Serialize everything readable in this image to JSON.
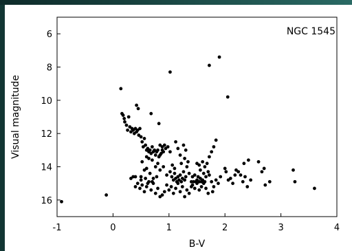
{
  "chart_data": {
    "type": "scatter",
    "title": "",
    "annotation": "NGC 1545",
    "xlabel": "B-V",
    "ylabel": "Visual magnitude",
    "xlim": [
      -1,
      4
    ],
    "ylim": [
      17,
      5
    ],
    "y_inverted": true,
    "x_ticks": [
      -1,
      0,
      1,
      2,
      3,
      4
    ],
    "y_ticks": [
      6,
      8,
      10,
      12,
      14,
      16
    ],
    "grid": false,
    "point_color": "#000000",
    "points": [
      [
        -0.92,
        16.1
      ],
      [
        -0.12,
        15.7
      ],
      [
        0.14,
        9.3
      ],
      [
        0.16,
        10.8
      ],
      [
        0.18,
        10.9
      ],
      [
        0.2,
        11.1
      ],
      [
        0.21,
        11.3
      ],
      [
        0.24,
        11.5
      ],
      [
        0.26,
        11.8
      ],
      [
        0.28,
        11.0
      ],
      [
        0.3,
        11.6
      ],
      [
        0.32,
        11.9
      ],
      [
        0.34,
        11.7
      ],
      [
        0.36,
        11.8
      ],
      [
        0.38,
        12.0
      ],
      [
        0.4,
        11.7
      ],
      [
        0.42,
        11.9
      ],
      [
        0.44,
        11.8
      ],
      [
        0.46,
        12.1
      ],
      [
        0.48,
        11.7
      ],
      [
        0.5,
        12.2
      ],
      [
        0.52,
        12.5
      ],
      [
        0.54,
        12.8
      ],
      [
        0.42,
        10.3
      ],
      [
        0.45,
        10.5
      ],
      [
        0.68,
        10.8
      ],
      [
        0.82,
        11.4
      ],
      [
        0.56,
        12.3
      ],
      [
        0.58,
        12.7
      ],
      [
        0.6,
        13.0
      ],
      [
        0.62,
        12.9
      ],
      [
        0.64,
        13.1
      ],
      [
        0.66,
        13.0
      ],
      [
        0.68,
        13.2
      ],
      [
        0.7,
        12.8
      ],
      [
        0.72,
        13.1
      ],
      [
        0.74,
        13.0
      ],
      [
        0.76,
        13.3
      ],
      [
        0.78,
        13.1
      ],
      [
        0.8,
        13.0
      ],
      [
        0.82,
        13.4
      ],
      [
        0.84,
        12.7
      ],
      [
        0.86,
        13.2
      ],
      [
        0.88,
        12.8
      ],
      [
        0.9,
        13.1
      ],
      [
        0.92,
        12.7
      ],
      [
        0.94,
        12.9
      ],
      [
        0.98,
        12.8
      ],
      [
        0.6,
        13.4
      ],
      [
        0.64,
        13.5
      ],
      [
        0.7,
        13.6
      ],
      [
        0.76,
        14.0
      ],
      [
        0.8,
        13.8
      ],
      [
        0.84,
        13.3
      ],
      [
        0.88,
        13.0
      ],
      [
        0.52,
        13.7
      ],
      [
        0.56,
        14.2
      ],
      [
        0.5,
        14.6
      ],
      [
        0.6,
        14.1
      ],
      [
        0.66,
        14.4
      ],
      [
        0.72,
        14.7
      ],
      [
        0.78,
        14.6
      ],
      [
        0.84,
        14.2
      ],
      [
        0.9,
        14.0
      ],
      [
        0.96,
        14.5
      ],
      [
        1.02,
        14.3
      ],
      [
        1.05,
        14.6
      ],
      [
        1.08,
        14.8
      ],
      [
        1.1,
        14.4
      ],
      [
        1.12,
        14.7
      ],
      [
        1.14,
        14.9
      ],
      [
        1.16,
        14.6
      ],
      [
        1.18,
        14.8
      ],
      [
        1.2,
        14.5
      ],
      [
        1.22,
        14.9
      ],
      [
        1.24,
        14.7
      ],
      [
        1.26,
        14.3
      ],
      [
        1.28,
        14.8
      ],
      [
        1.3,
        14.6
      ],
      [
        1.32,
        14.0
      ],
      [
        1.34,
        13.7
      ],
      [
        1.36,
        14.4
      ],
      [
        1.12,
        12.5
      ],
      [
        1.16,
        12.9
      ],
      [
        1.2,
        13.3
      ],
      [
        1.22,
        13.8
      ],
      [
        1.26,
        12.7
      ],
      [
        1.28,
        13.5
      ],
      [
        1.3,
        13.0
      ],
      [
        1.02,
        13.1
      ],
      [
        1.06,
        13.9
      ],
      [
        1.1,
        14.1
      ],
      [
        0.32,
        14.7
      ],
      [
        0.36,
        14.6
      ],
      [
        0.4,
        15.2
      ],
      [
        0.44,
        15.0
      ],
      [
        0.48,
        15.3
      ],
      [
        0.52,
        15.1
      ],
      [
        0.56,
        15.5
      ],
      [
        0.6,
        15.2
      ],
      [
        0.64,
        14.9
      ],
      [
        0.68,
        15.4
      ],
      [
        0.72,
        15.0
      ],
      [
        0.76,
        15.6
      ],
      [
        0.8,
        15.3
      ],
      [
        0.84,
        15.8
      ],
      [
        0.88,
        15.7
      ],
      [
        0.92,
        15.5
      ],
      [
        0.96,
        15.1
      ],
      [
        1.0,
        15.4
      ],
      [
        1.04,
        15.2
      ],
      [
        1.08,
        15.6
      ],
      [
        1.12,
        15.3
      ],
      [
        1.16,
        15.0
      ],
      [
        1.2,
        15.5
      ],
      [
        1.24,
        15.2
      ],
      [
        1.28,
        15.8
      ],
      [
        1.32,
        15.4
      ],
      [
        1.36,
        15.6
      ],
      [
        1.4,
        15.2
      ],
      [
        0.4,
        14.6
      ],
      [
        0.5,
        14.8
      ],
      [
        0.58,
        14.7
      ],
      [
        0.62,
        15.0
      ],
      [
        0.7,
        14.9
      ],
      [
        1.4,
        14.9
      ],
      [
        1.42,
        14.6
      ],
      [
        1.44,
        14.9
      ],
      [
        1.46,
        14.5
      ],
      [
        1.48,
        14.9
      ],
      [
        1.5,
        14.8
      ],
      [
        1.52,
        14.6
      ],
      [
        1.54,
        14.9
      ],
      [
        1.56,
        14.7
      ],
      [
        1.58,
        14.9
      ],
      [
        1.6,
        14.8
      ],
      [
        1.62,
        14.4
      ],
      [
        1.64,
        14.9
      ],
      [
        1.66,
        14.6
      ],
      [
        1.42,
        15.1
      ],
      [
        1.46,
        15.3
      ],
      [
        1.5,
        15.0
      ],
      [
        1.54,
        15.4
      ],
      [
        1.58,
        15.2
      ],
      [
        1.62,
        15.0
      ],
      [
        1.66,
        15.3
      ],
      [
        1.5,
        13.8
      ],
      [
        1.54,
        13.9
      ],
      [
        1.56,
        14.2
      ],
      [
        1.6,
        13.7
      ],
      [
        1.64,
        14.0
      ],
      [
        1.68,
        13.8
      ],
      [
        1.7,
        14.3
      ],
      [
        1.72,
        14.5
      ],
      [
        1.76,
        14.9
      ],
      [
        1.8,
        15.2
      ],
      [
        1.84,
        14.8
      ],
      [
        1.88,
        15.0
      ],
      [
        1.92,
        14.6
      ],
      [
        1.76,
        13.1
      ],
      [
        1.8,
        12.8
      ],
      [
        1.84,
        12.4
      ],
      [
        1.72,
        13.4
      ],
      [
        1.7,
        15.6
      ],
      [
        1.78,
        15.5
      ],
      [
        2.0,
        14.1
      ],
      [
        2.02,
        14.3
      ],
      [
        2.06,
        14.8
      ],
      [
        2.1,
        14.7
      ],
      [
        2.14,
        15.0
      ],
      [
        2.18,
        14.5
      ],
      [
        2.2,
        14.2
      ],
      [
        2.24,
        14.3
      ],
      [
        2.28,
        14.5
      ],
      [
        2.32,
        14.9
      ],
      [
        2.36,
        14.6
      ],
      [
        2.4,
        15.2
      ],
      [
        2.42,
        13.6
      ],
      [
        2.46,
        14.8
      ],
      [
        2.34,
        13.8
      ],
      [
        2.6,
        13.7
      ],
      [
        2.66,
        14.3
      ],
      [
        2.7,
        14.1
      ],
      [
        2.72,
        15.1
      ],
      [
        2.8,
        14.9
      ],
      [
        3.22,
        14.2
      ],
      [
        3.25,
        14.9
      ],
      [
        3.6,
        15.3
      ],
      [
        1.02,
        8.3
      ],
      [
        1.72,
        7.9
      ],
      [
        1.9,
        7.4
      ],
      [
        2.05,
        9.8
      ]
    ]
  }
}
